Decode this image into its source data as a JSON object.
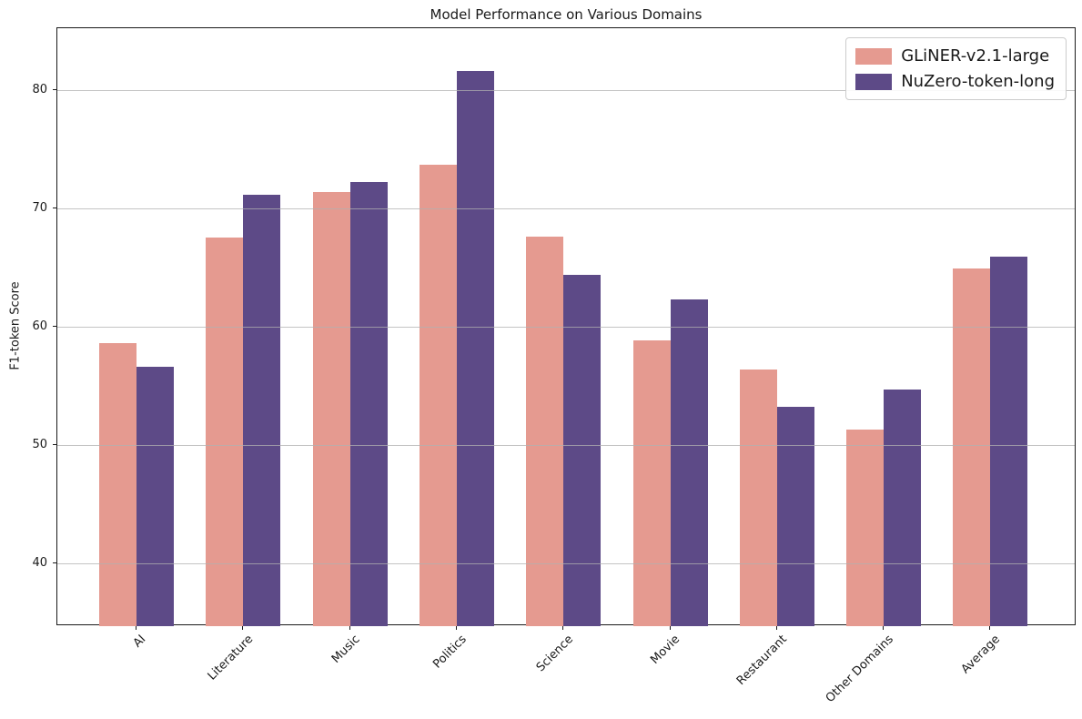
{
  "chart_data": {
    "type": "bar",
    "title": "Model Performance on Various Domains",
    "xlabel": "",
    "ylabel": "F1-token Score",
    "categories": [
      "AI",
      "Literature",
      "Music",
      "Politics",
      "Science",
      "Movie",
      "Restaurant",
      "Other Domains",
      "Average"
    ],
    "series": [
      {
        "name": "GLiNER-v2.1-large",
        "color": "#E59A90",
        "values": [
          58.6,
          67.5,
          71.4,
          73.7,
          67.6,
          58.8,
          56.4,
          51.3,
          64.9
        ]
      },
      {
        "name": "NuZero-token-long",
        "color": "#5D4A87",
        "values": [
          56.6,
          71.1,
          72.2,
          81.6,
          64.4,
          62.3,
          53.2,
          54.7,
          65.9
        ]
      }
    ],
    "ylim": [
      34.7,
      85.2
    ],
    "yticks": [
      40,
      50,
      60,
      70,
      80
    ],
    "grid": true,
    "grid_axis": "y",
    "legend_position": "upper right",
    "xtick_rotation": 45
  },
  "colors": {
    "grid": "#b0b0b0",
    "spine": "#1a1a1a",
    "background": "#ffffff",
    "legend_border": "#cccccc",
    "text": "#1a1a1a"
  }
}
